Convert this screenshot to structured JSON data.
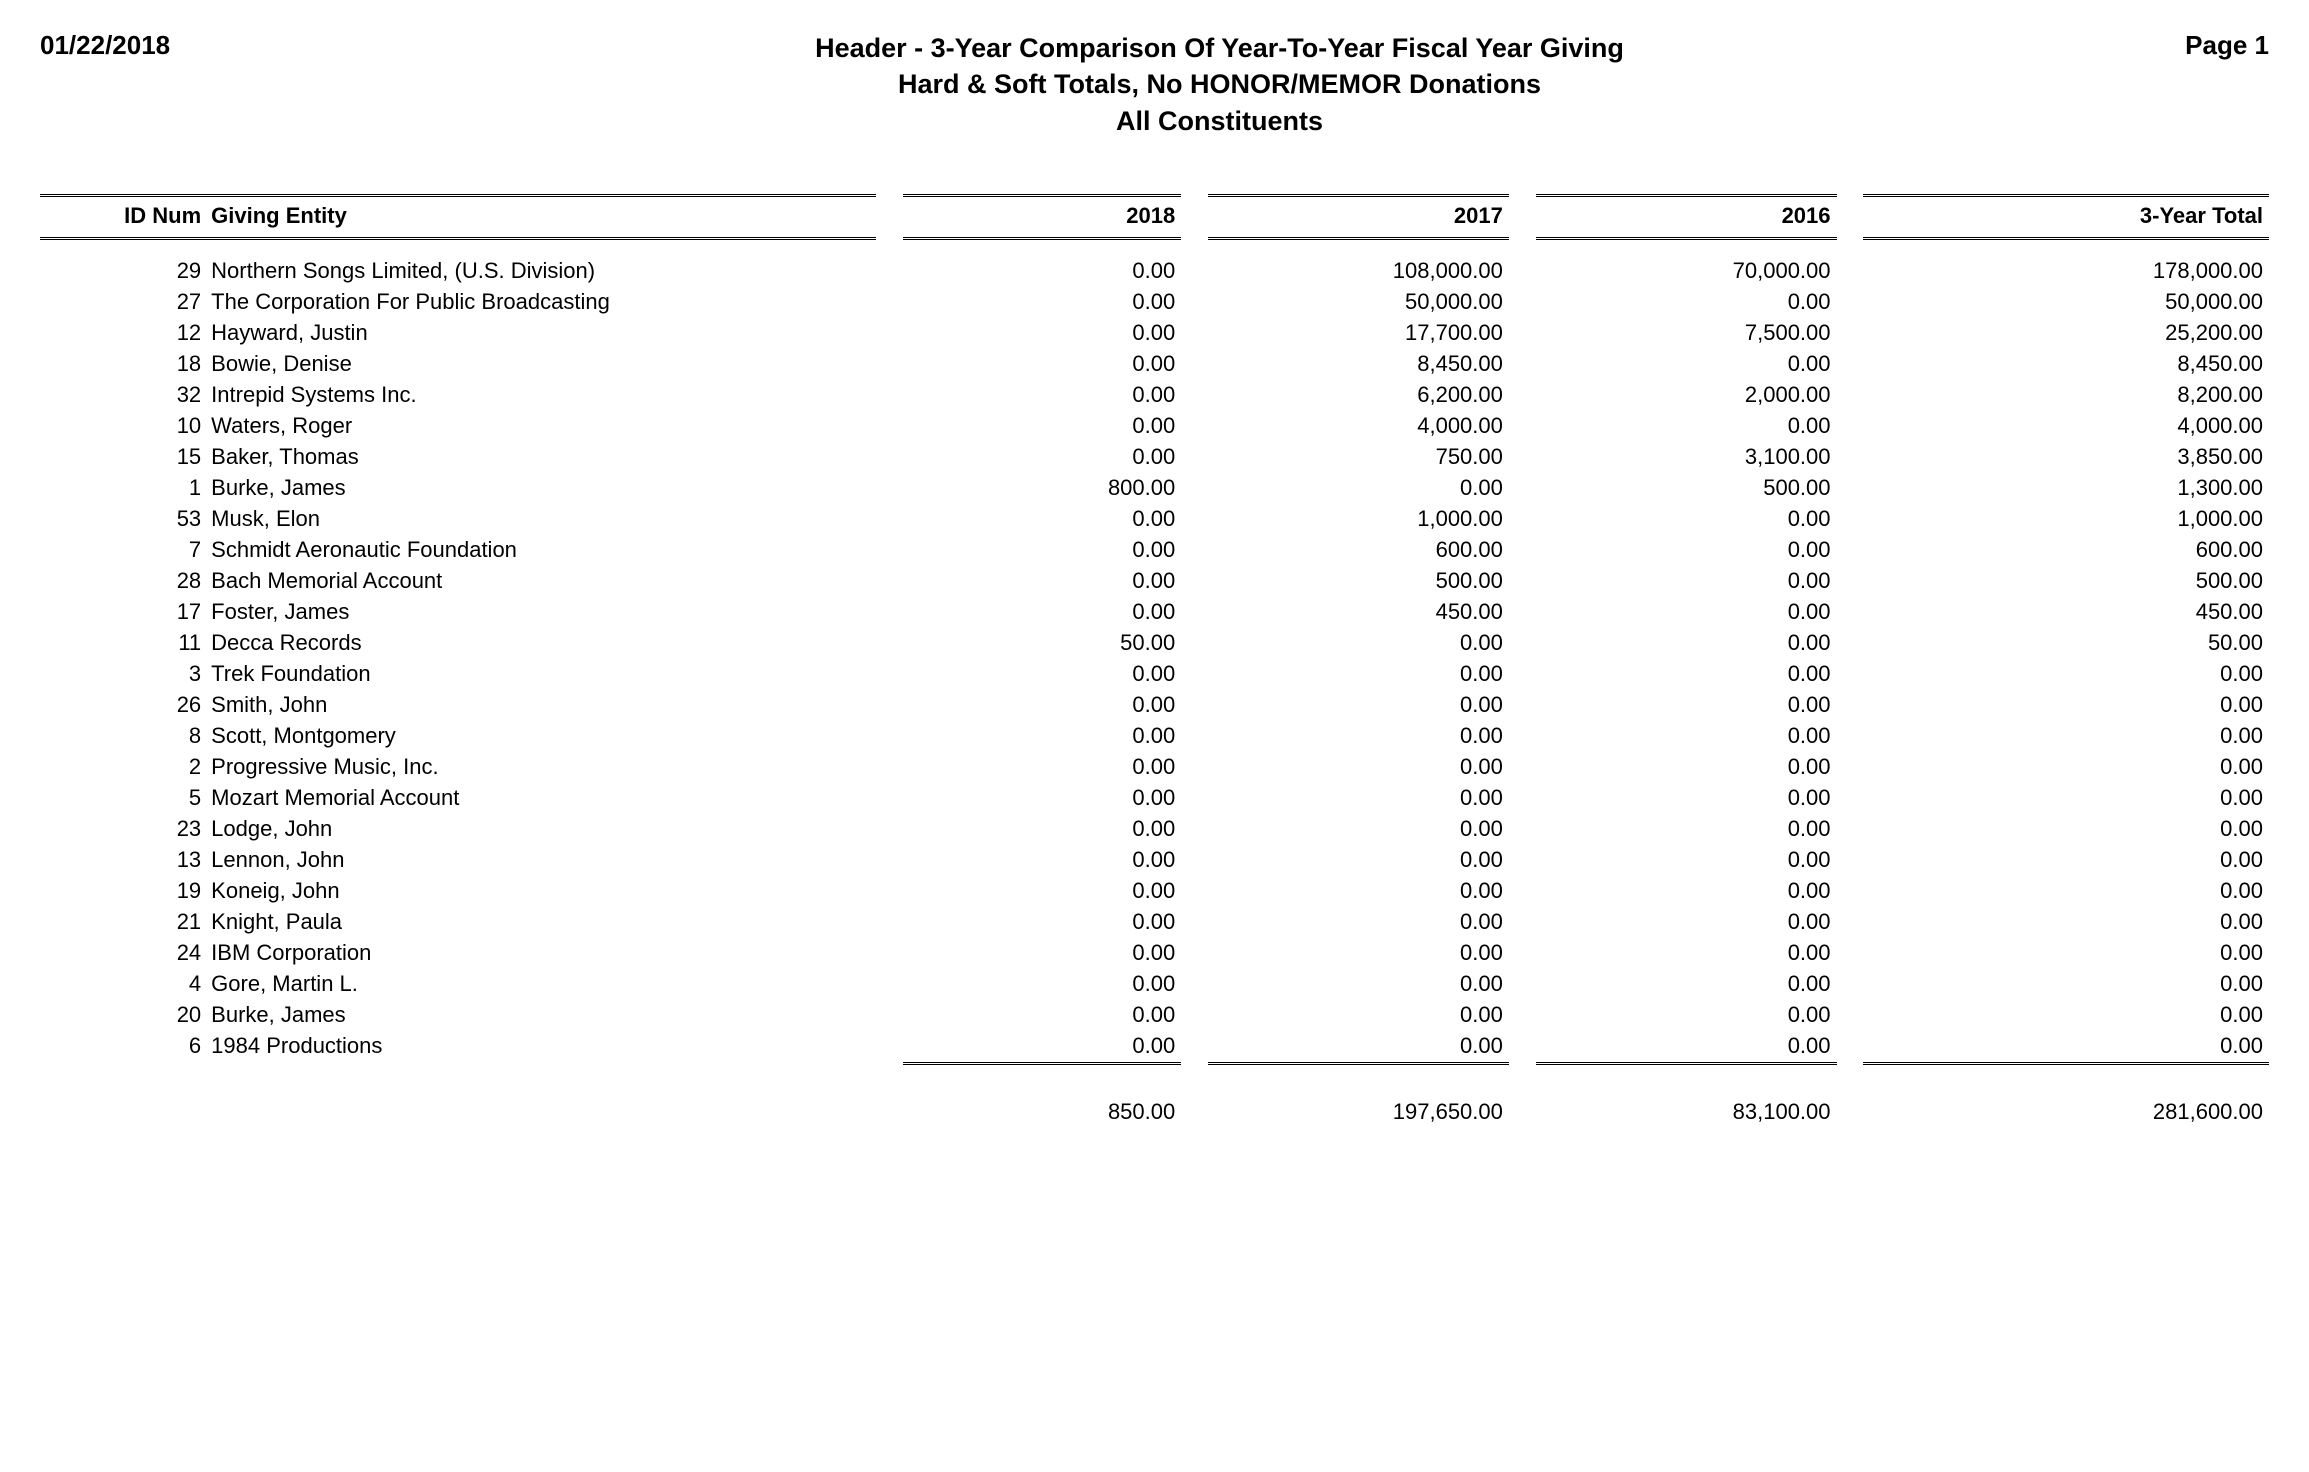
{
  "report": {
    "date": "01/22/2018",
    "page_label": "Page 1",
    "title_line1": "Header - 3-Year Comparison Of Year-To-Year Fiscal Year Giving",
    "title_line2": "Hard & Soft Totals, No HONOR/MEMOR Donations",
    "title_line3": "All Constituents"
  },
  "columns": {
    "id": "ID Num",
    "entity": "Giving Entity",
    "y2018": "2018",
    "y2017": "2017",
    "y2016": "2016",
    "total": "3-Year Total"
  },
  "rows": [
    {
      "id": "29",
      "entity": "Northern Songs Limited, (U.S. Division)",
      "y2018": "0.00",
      "y2017": "108,000.00",
      "y2016": "70,000.00",
      "total": "178,000.00"
    },
    {
      "id": "27",
      "entity": "The Corporation For Public Broadcasting",
      "y2018": "0.00",
      "y2017": "50,000.00",
      "y2016": "0.00",
      "total": "50,000.00"
    },
    {
      "id": "12",
      "entity": "Hayward, Justin",
      "y2018": "0.00",
      "y2017": "17,700.00",
      "y2016": "7,500.00",
      "total": "25,200.00"
    },
    {
      "id": "18",
      "entity": "Bowie, Denise",
      "y2018": "0.00",
      "y2017": "8,450.00",
      "y2016": "0.00",
      "total": "8,450.00"
    },
    {
      "id": "32",
      "entity": "Intrepid Systems Inc.",
      "y2018": "0.00",
      "y2017": "6,200.00",
      "y2016": "2,000.00",
      "total": "8,200.00"
    },
    {
      "id": "10",
      "entity": "Waters, Roger",
      "y2018": "0.00",
      "y2017": "4,000.00",
      "y2016": "0.00",
      "total": "4,000.00"
    },
    {
      "id": "15",
      "entity": "Baker, Thomas",
      "y2018": "0.00",
      "y2017": "750.00",
      "y2016": "3,100.00",
      "total": "3,850.00"
    },
    {
      "id": "1",
      "entity": "Burke, James",
      "y2018": "800.00",
      "y2017": "0.00",
      "y2016": "500.00",
      "total": "1,300.00"
    },
    {
      "id": "53",
      "entity": "Musk, Elon",
      "y2018": "0.00",
      "y2017": "1,000.00",
      "y2016": "0.00",
      "total": "1,000.00"
    },
    {
      "id": "7",
      "entity": "Schmidt Aeronautic Foundation",
      "y2018": "0.00",
      "y2017": "600.00",
      "y2016": "0.00",
      "total": "600.00"
    },
    {
      "id": "28",
      "entity": "Bach Memorial Account",
      "y2018": "0.00",
      "y2017": "500.00",
      "y2016": "0.00",
      "total": "500.00"
    },
    {
      "id": "17",
      "entity": "Foster, James",
      "y2018": "0.00",
      "y2017": "450.00",
      "y2016": "0.00",
      "total": "450.00"
    },
    {
      "id": "11",
      "entity": "Decca Records",
      "y2018": "50.00",
      "y2017": "0.00",
      "y2016": "0.00",
      "total": "50.00"
    },
    {
      "id": "3",
      "entity": "Trek Foundation",
      "y2018": "0.00",
      "y2017": "0.00",
      "y2016": "0.00",
      "total": "0.00"
    },
    {
      "id": "26",
      "entity": "Smith, John",
      "y2018": "0.00",
      "y2017": "0.00",
      "y2016": "0.00",
      "total": "0.00"
    },
    {
      "id": "8",
      "entity": "Scott, Montgomery",
      "y2018": "0.00",
      "y2017": "0.00",
      "y2016": "0.00",
      "total": "0.00"
    },
    {
      "id": "2",
      "entity": "Progressive Music, Inc.",
      "y2018": "0.00",
      "y2017": "0.00",
      "y2016": "0.00",
      "total": "0.00"
    },
    {
      "id": "5",
      "entity": "Mozart Memorial Account",
      "y2018": "0.00",
      "y2017": "0.00",
      "y2016": "0.00",
      "total": "0.00"
    },
    {
      "id": "23",
      "entity": "Lodge, John",
      "y2018": "0.00",
      "y2017": "0.00",
      "y2016": "0.00",
      "total": "0.00"
    },
    {
      "id": "13",
      "entity": "Lennon, John",
      "y2018": "0.00",
      "y2017": "0.00",
      "y2016": "0.00",
      "total": "0.00"
    },
    {
      "id": "19",
      "entity": "Koneig, John",
      "y2018": "0.00",
      "y2017": "0.00",
      "y2016": "0.00",
      "total": "0.00"
    },
    {
      "id": "21",
      "entity": "Knight, Paula",
      "y2018": "0.00",
      "y2017": "0.00",
      "y2016": "0.00",
      "total": "0.00"
    },
    {
      "id": "24",
      "entity": "IBM Corporation",
      "y2018": "0.00",
      "y2017": "0.00",
      "y2016": "0.00",
      "total": "0.00"
    },
    {
      "id": "4",
      "entity": "Gore, Martin L.",
      "y2018": "0.00",
      "y2017": "0.00",
      "y2016": "0.00",
      "total": "0.00"
    },
    {
      "id": "20",
      "entity": "Burke, James",
      "y2018": "0.00",
      "y2017": "0.00",
      "y2016": "0.00",
      "total": "0.00"
    },
    {
      "id": "6",
      "entity": "1984 Productions",
      "y2018": "0.00",
      "y2017": "0.00",
      "y2016": "0.00",
      "total": "0.00"
    }
  ],
  "totals": {
    "y2018": "850.00",
    "y2017": "197,650.00",
    "y2016": "83,100.00",
    "total": "281,600.00"
  },
  "style": {
    "background_color": "#ffffff",
    "text_color": "#000000",
    "font_family": "Arial",
    "header_fontsize_pt": 20,
    "body_fontsize_pt": 16,
    "rule_style": "double",
    "rule_color": "#000000"
  }
}
